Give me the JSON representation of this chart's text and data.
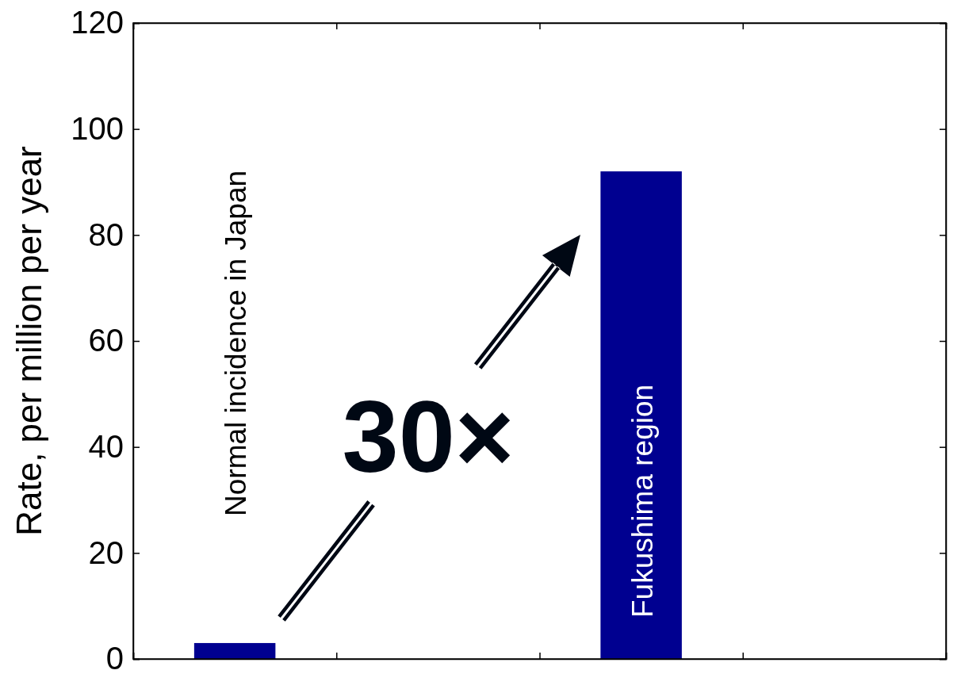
{
  "chart_data": {
    "type": "bar",
    "ylabel": "Rate, per million per year",
    "categories": [
      "Normal incidence in Japan",
      null,
      "Fukushima region",
      null
    ],
    "values": [
      3,
      null,
      92,
      null
    ],
    "color": "#000090",
    "ylim": [
      0,
      120
    ],
    "yticks": [
      0,
      20,
      40,
      60,
      80,
      100,
      120
    ],
    "grid": false,
    "annotations": [
      "30×"
    ]
  }
}
